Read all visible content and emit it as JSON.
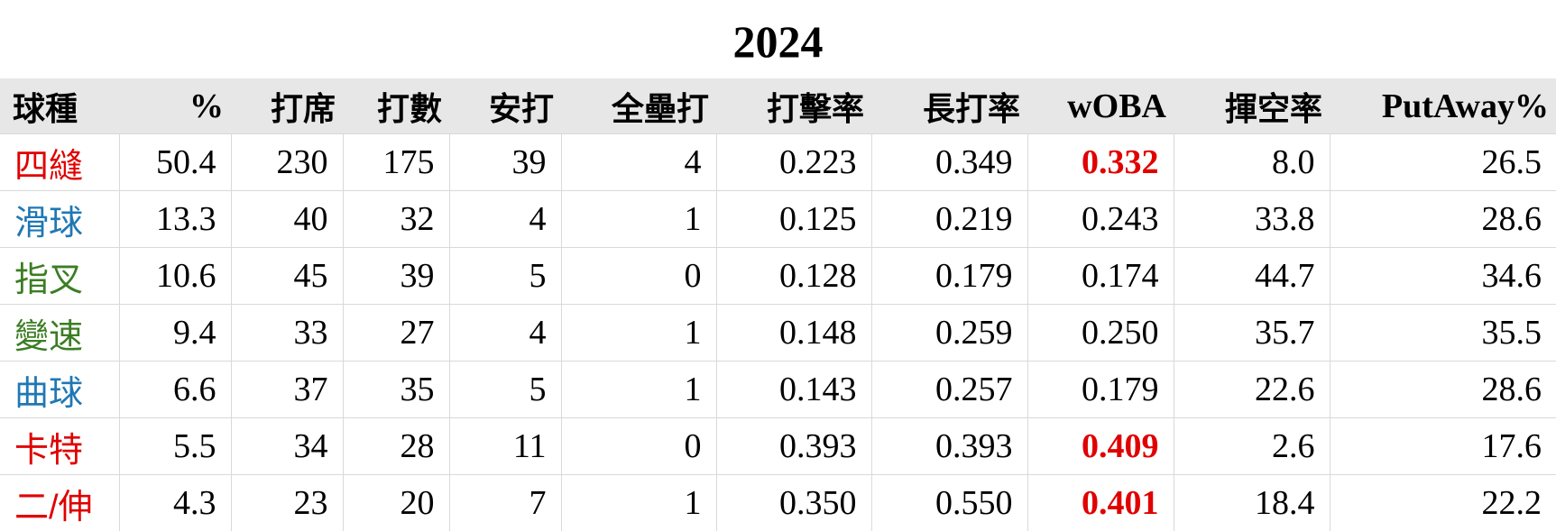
{
  "title": "2024",
  "headers": [
    "球種",
    "%",
    "打席",
    "打數",
    "安打",
    "全壘打",
    "打擊率",
    "長打率",
    "wOBA",
    "揮空率",
    "PutAway%"
  ],
  "colors": {
    "red": "#e00000",
    "blue": "#1f78b4",
    "green": "#3b7d23",
    "highlight": "#e00000"
  },
  "rows": [
    {
      "pitch": "四縫",
      "color": "red",
      "values": [
        "50.4",
        "230",
        "175",
        "39",
        "4",
        "0.223",
        "0.349",
        "0.332",
        "8.0",
        "26.5"
      ],
      "woba_highlight": true
    },
    {
      "pitch": "滑球",
      "color": "blue",
      "values": [
        "13.3",
        "40",
        "32",
        "4",
        "1",
        "0.125",
        "0.219",
        "0.243",
        "33.8",
        "28.6"
      ],
      "woba_highlight": false
    },
    {
      "pitch": "指叉",
      "color": "green",
      "values": [
        "10.6",
        "45",
        "39",
        "5",
        "0",
        "0.128",
        "0.179",
        "0.174",
        "44.7",
        "34.6"
      ],
      "woba_highlight": false
    },
    {
      "pitch": "變速",
      "color": "green",
      "values": [
        "9.4",
        "33",
        "27",
        "4",
        "1",
        "0.148",
        "0.259",
        "0.250",
        "35.7",
        "35.5"
      ],
      "woba_highlight": false
    },
    {
      "pitch": "曲球",
      "color": "blue",
      "values": [
        "6.6",
        "37",
        "35",
        "5",
        "1",
        "0.143",
        "0.257",
        "0.179",
        "22.6",
        "28.6"
      ],
      "woba_highlight": false
    },
    {
      "pitch": "卡特",
      "color": "red",
      "values": [
        "5.5",
        "34",
        "28",
        "11",
        "0",
        "0.393",
        "0.393",
        "0.409",
        "2.6",
        "17.6"
      ],
      "woba_highlight": true
    },
    {
      "pitch": "二/伸",
      "color": "red",
      "values": [
        "4.3",
        "23",
        "20",
        "7",
        "1",
        "0.350",
        "0.550",
        "0.401",
        "18.4",
        "22.2"
      ],
      "woba_highlight": true
    }
  ]
}
